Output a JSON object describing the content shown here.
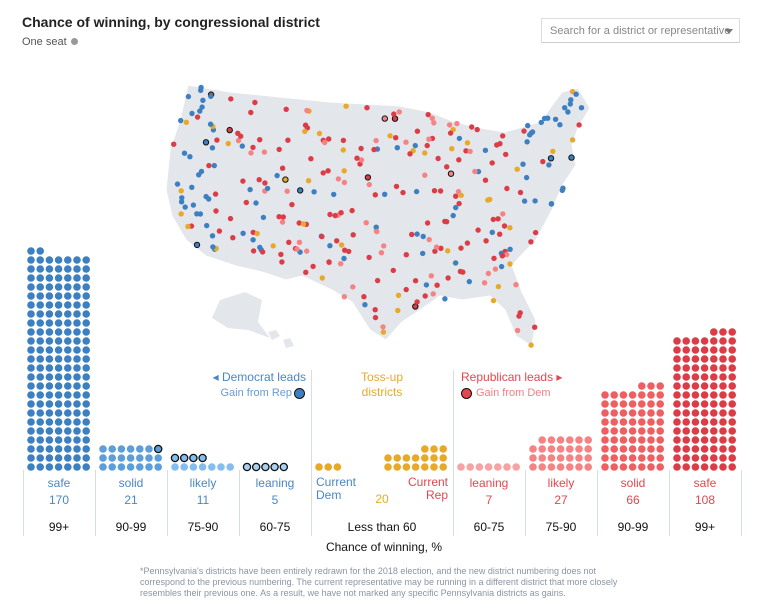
{
  "header": {
    "title": "Chance of winning, by congressional district",
    "legend_label": "One seat",
    "search_placeholder": "Search for a district or representative"
  },
  "annotations": {
    "dem_leads": "◂ Democrat leads",
    "gain_from_rep": "Gain from Rep",
    "tossup": "Toss-up districts",
    "rep_leads": "Republican leads ▸",
    "gain_from_dem": "Gain from Dem",
    "current_dem": "Current Dem",
    "current_rep": "Current Rep"
  },
  "colors": {
    "dem_safe": "#3d80c2",
    "dem_solid": "#5c9edb",
    "dem_likely": "#86bdf0",
    "dem_leaning": "#a9cff3",
    "tossup": "#e8a928",
    "rep_leaning": "#f7a3a3",
    "rep_likely": "#f58383",
    "rep_solid": "#ef5f62",
    "rep_safe": "#dc3c46",
    "dem_text": "#4a86c5",
    "rep_text": "#e2474f",
    "map": "#e3e6ea"
  },
  "chart_data": {
    "type": "dot-histogram",
    "xlabel": "Chance of winning, %",
    "categories": [
      {
        "side": "dem",
        "label": "safe",
        "count": "170",
        "range": "99+",
        "gains": 0
      },
      {
        "side": "dem",
        "label": "solid",
        "count": "21",
        "range": "90-99",
        "gains": 1
      },
      {
        "side": "dem",
        "label": "likely",
        "count": "11",
        "range": "75-90",
        "gains": 4
      },
      {
        "side": "dem",
        "label": "leaning",
        "count": "5",
        "range": "60-75",
        "gains": 5
      },
      {
        "side": "tossup",
        "label": "",
        "count": "20",
        "range": "Less than 60",
        "current_dem": 3,
        "current_rep": 17
      },
      {
        "side": "rep",
        "label": "leaning",
        "count": "7",
        "range": "60-75",
        "gains": 0
      },
      {
        "side": "rep",
        "label": "likely",
        "count": "27",
        "range": "75-90",
        "gains": 0
      },
      {
        "side": "rep",
        "label": "solid",
        "count": "66",
        "range": "90-99",
        "gains": 0
      },
      {
        "side": "rep",
        "label": "safe",
        "count": "108",
        "range": "99+",
        "gains": 0
      }
    ]
  },
  "footnote": "*Pennsylvania's districts have been entirely redrawn for the 2018 election, and the new district numbering does not correspond to the previous numbering. The current representative may be running in a different district that more closely resembles their previous one. As a result, we have not marked any specific Pennsylvania districts as gains."
}
